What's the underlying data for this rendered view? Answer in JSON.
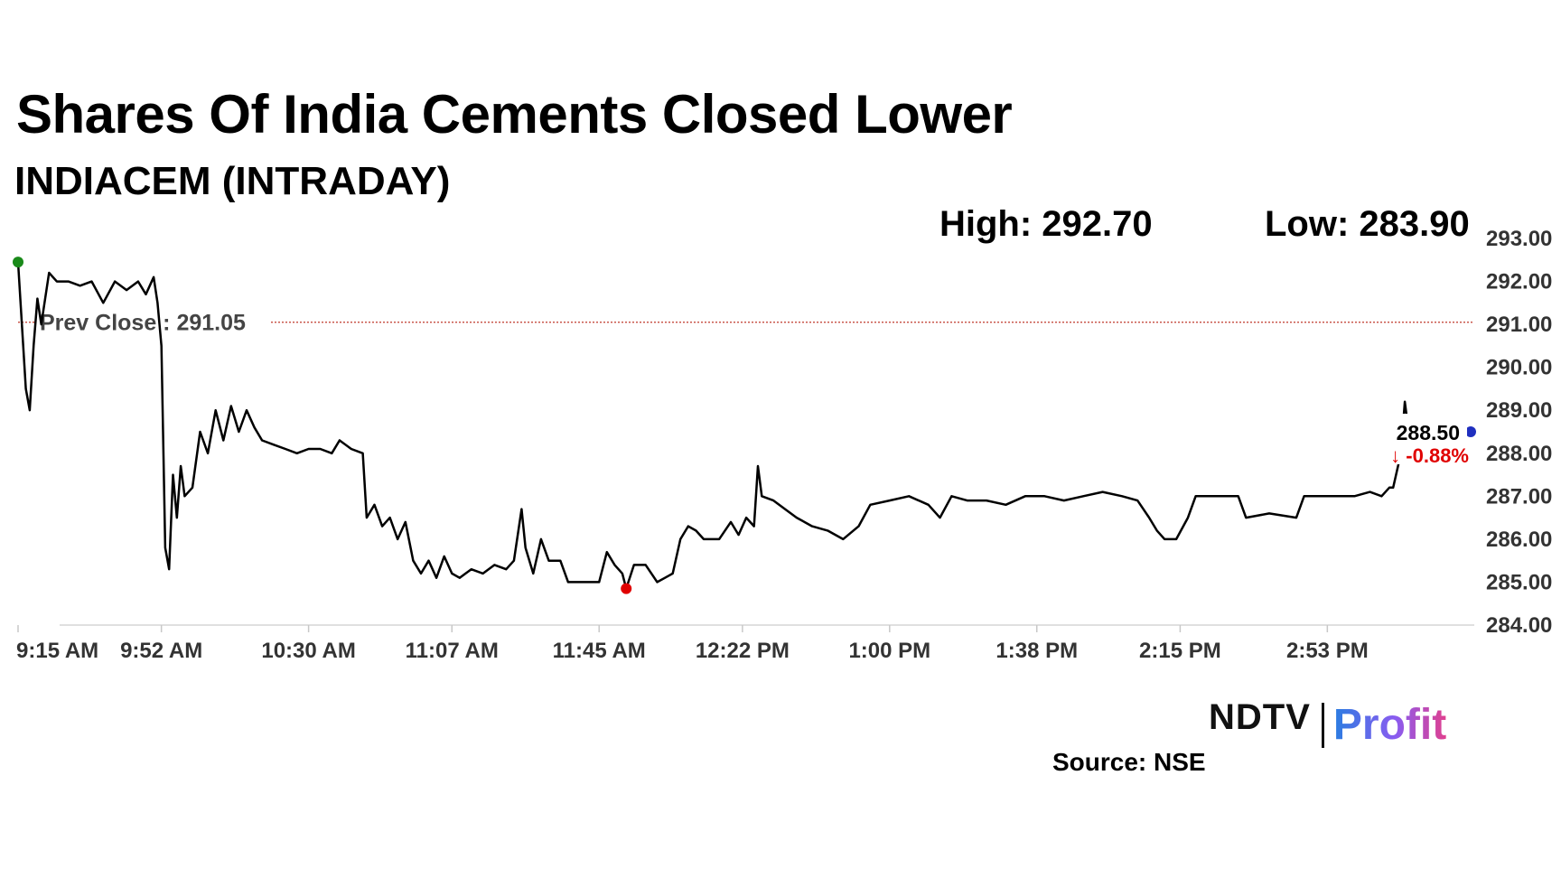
{
  "header": {
    "title": "Shares Of India Cements Closed Lower",
    "subtitle": "INDIACEM (INTRADAY)"
  },
  "stats": {
    "high_label": "High: 292.70",
    "low_label": "Low: 283.90"
  },
  "footer": {
    "brand_ndtv": "NDTV",
    "brand_profit": "Profit",
    "source": "Source: NSE"
  },
  "colors": {
    "line": "#000000",
    "prev_close_line": "#c0392b",
    "open_marker": "#1a8a1a",
    "low_marker": "#e00000",
    "last_marker": "#1f2fbf",
    "change_negative": "#e00000",
    "axis_text": "#333333"
  },
  "chart_data": {
    "type": "line",
    "title": "Shares Of India Cements Closed Lower",
    "subtitle": "INDIACEM (INTRADAY)",
    "x_tick_labels": [
      "9:15 AM",
      "9:52 AM",
      "10:30 AM",
      "11:07 AM",
      "11:45 AM",
      "12:22 PM",
      "1:00 PM",
      "1:38 PM",
      "2:15 PM",
      "2:53 PM"
    ],
    "y_tick_labels": [
      "293.00",
      "292.00",
      "291.00",
      "290.00",
      "289.00",
      "288.00",
      "287.00",
      "286.00",
      "285.00",
      "284.00"
    ],
    "ylim": [
      284,
      293
    ],
    "time_range": [
      "9:15 AM",
      "3:30 PM"
    ],
    "grid": false,
    "prev_close": {
      "label": "Prev Close : 291.05",
      "value": 291.05
    },
    "last_price": {
      "label": "288.50",
      "value": 288.5,
      "time": "3:30 PM"
    },
    "change": {
      "label": "-0.88%",
      "arrow": "↓"
    },
    "markers": [
      {
        "kind": "open",
        "time": "9:15 AM",
        "value": 292.45
      },
      {
        "kind": "low",
        "time": "11:52 AM",
        "value": 284.85
      },
      {
        "kind": "last",
        "time": "3:30 PM",
        "value": 288.5
      }
    ],
    "series": [
      {
        "points": [
          [
            "9:15 AM",
            292.45
          ],
          [
            "9:17 AM",
            289.5
          ],
          [
            "9:18 AM",
            289.0
          ],
          [
            "9:19 AM",
            290.5
          ],
          [
            "9:20 AM",
            291.6
          ],
          [
            "9:21 AM",
            291.0
          ],
          [
            "9:23 AM",
            292.2
          ],
          [
            "9:25 AM",
            292.0
          ],
          [
            "9:28 AM",
            292.0
          ],
          [
            "9:31 AM",
            291.9
          ],
          [
            "9:34 AM",
            292.0
          ],
          [
            "9:37 AM",
            291.5
          ],
          [
            "9:40 AM",
            292.0
          ],
          [
            "9:43 AM",
            291.8
          ],
          [
            "9:46 AM",
            292.0
          ],
          [
            "9:48 AM",
            291.7
          ],
          [
            "9:50 AM",
            292.1
          ],
          [
            "9:51 AM",
            291.5
          ],
          [
            "9:52 AM",
            290.5
          ],
          [
            "9:53 AM",
            285.8
          ],
          [
            "9:54 AM",
            285.3
          ],
          [
            "9:55 AM",
            287.5
          ],
          [
            "9:56 AM",
            286.5
          ],
          [
            "9:57 AM",
            287.7
          ],
          [
            "9:58 AM",
            287.0
          ],
          [
            "10:00 AM",
            287.2
          ],
          [
            "10:02 AM",
            288.5
          ],
          [
            "10:04 AM",
            288.0
          ],
          [
            "10:06 AM",
            289.0
          ],
          [
            "10:08 AM",
            288.3
          ],
          [
            "10:10 AM",
            289.1
          ],
          [
            "10:12 AM",
            288.5
          ],
          [
            "10:14 AM",
            289.0
          ],
          [
            "10:16 AM",
            288.6
          ],
          [
            "10:18 AM",
            288.3
          ],
          [
            "10:21 AM",
            288.2
          ],
          [
            "10:24 AM",
            288.1
          ],
          [
            "10:27 AM",
            288.0
          ],
          [
            "10:30 AM",
            288.1
          ],
          [
            "10:33 AM",
            288.1
          ],
          [
            "10:36 AM",
            288.0
          ],
          [
            "10:38 AM",
            288.3
          ],
          [
            "10:41 AM",
            288.1
          ],
          [
            "10:44 AM",
            288.0
          ],
          [
            "10:45 AM",
            286.5
          ],
          [
            "10:47 AM",
            286.8
          ],
          [
            "10:49 AM",
            286.3
          ],
          [
            "10:51 AM",
            286.5
          ],
          [
            "10:53 AM",
            286.0
          ],
          [
            "10:55 AM",
            286.4
          ],
          [
            "10:57 AM",
            285.5
          ],
          [
            "10:59 AM",
            285.2
          ],
          [
            "11:01 AM",
            285.5
          ],
          [
            "11:03 AM",
            285.1
          ],
          [
            "11:05 AM",
            285.6
          ],
          [
            "11:07 AM",
            285.2
          ],
          [
            "11:09 AM",
            285.1
          ],
          [
            "11:12 AM",
            285.3
          ],
          [
            "11:15 AM",
            285.2
          ],
          [
            "11:18 AM",
            285.4
          ],
          [
            "11:21 AM",
            285.3
          ],
          [
            "11:23 AM",
            285.5
          ],
          [
            "11:25 AM",
            286.7
          ],
          [
            "11:26 AM",
            285.8
          ],
          [
            "11:28 AM",
            285.2
          ],
          [
            "11:30 AM",
            286.0
          ],
          [
            "11:32 AM",
            285.5
          ],
          [
            "11:35 AM",
            285.5
          ],
          [
            "11:37 AM",
            285.0
          ],
          [
            "11:40 AM",
            285.0
          ],
          [
            "11:43 AM",
            285.0
          ],
          [
            "11:45 AM",
            285.0
          ],
          [
            "11:47 AM",
            285.7
          ],
          [
            "11:49 AM",
            285.4
          ],
          [
            "11:51 AM",
            285.2
          ],
          [
            "11:52 AM",
            284.85
          ],
          [
            "11:54 AM",
            285.4
          ],
          [
            "11:57 AM",
            285.4
          ],
          [
            "12:00 PM",
            285.0
          ],
          [
            "12:02 PM",
            285.1
          ],
          [
            "12:04 PM",
            285.2
          ],
          [
            "12:06 PM",
            286.0
          ],
          [
            "12:08 PM",
            286.3
          ],
          [
            "12:10 PM",
            286.2
          ],
          [
            "12:12 PM",
            286.0
          ],
          [
            "12:16 PM",
            286.0
          ],
          [
            "12:19 PM",
            286.4
          ],
          [
            "12:21 PM",
            286.1
          ],
          [
            "12:23 PM",
            286.5
          ],
          [
            "12:25 PM",
            286.3
          ],
          [
            "12:26 PM",
            287.7
          ],
          [
            "12:27 PM",
            287.0
          ],
          [
            "12:30 PM",
            286.9
          ],
          [
            "12:33 PM",
            286.7
          ],
          [
            "12:36 PM",
            286.5
          ],
          [
            "12:40 PM",
            286.3
          ],
          [
            "12:44 PM",
            286.2
          ],
          [
            "12:48 PM",
            286.0
          ],
          [
            "12:52 PM",
            286.3
          ],
          [
            "12:55 PM",
            286.8
          ],
          [
            "1:00 PM",
            286.9
          ],
          [
            "1:05 PM",
            287.0
          ],
          [
            "1:10 PM",
            286.8
          ],
          [
            "1:13 PM",
            286.5
          ],
          [
            "1:16 PM",
            287.0
          ],
          [
            "1:20 PM",
            286.9
          ],
          [
            "1:25 PM",
            286.9
          ],
          [
            "1:30 PM",
            286.8
          ],
          [
            "1:35 PM",
            287.0
          ],
          [
            "1:40 PM",
            287.0
          ],
          [
            "1:45 PM",
            286.9
          ],
          [
            "1:50 PM",
            287.0
          ],
          [
            "1:55 PM",
            287.1
          ],
          [
            "2:00 PM",
            287.0
          ],
          [
            "2:04 PM",
            286.9
          ],
          [
            "2:07 PM",
            286.5
          ],
          [
            "2:09 PM",
            286.2
          ],
          [
            "2:11 PM",
            286.0
          ],
          [
            "2:14 PM",
            286.0
          ],
          [
            "2:17 PM",
            286.5
          ],
          [
            "2:19 PM",
            287.0
          ],
          [
            "2:25 PM",
            287.0
          ],
          [
            "2:30 PM",
            287.0
          ],
          [
            "2:32 PM",
            286.5
          ],
          [
            "2:38 PM",
            286.6
          ],
          [
            "2:45 PM",
            286.5
          ],
          [
            "2:47 PM",
            287.0
          ],
          [
            "2:55 PM",
            287.0
          ],
          [
            "3:00 PM",
            287.0
          ],
          [
            "3:04 PM",
            287.1
          ],
          [
            "3:07 PM",
            287.0
          ],
          [
            "3:09 PM",
            287.2
          ],
          [
            "3:10 PM",
            287.2
          ],
          [
            "3:12 PM",
            288.0
          ],
          [
            "3:13 PM",
            289.2
          ],
          [
            "3:14 PM",
            288.5
          ],
          [
            "3:20 PM",
            288.5
          ],
          [
            "3:30 PM",
            288.5
          ]
        ]
      }
    ]
  }
}
